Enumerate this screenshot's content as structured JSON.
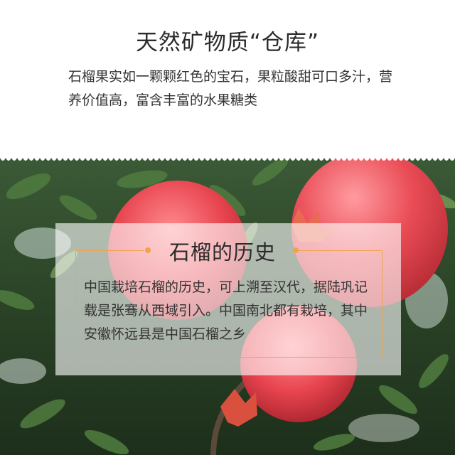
{
  "header": {
    "title": "天然矿物质“仓库”",
    "description": "石榴果实如一颗颗红色的宝石，果粒酸甜可口多汁，营养价值高，富含丰富的水果糖类"
  },
  "panel": {
    "title": "石榴的历史",
    "body": "中国栽培石榴的历史，可上溯至汉代，据陆巩记载是张骞从西域引入。中国南北都有栽培，其中安徽怀远县是中国石榴之乡"
  },
  "colors": {
    "accent": "#f2a24a",
    "fruit_red": "#e8454f",
    "leaf_green": "#2f4a2c"
  },
  "icons": [
    "scallop-divider",
    "accent-dot",
    "pomegranate-photo"
  ]
}
